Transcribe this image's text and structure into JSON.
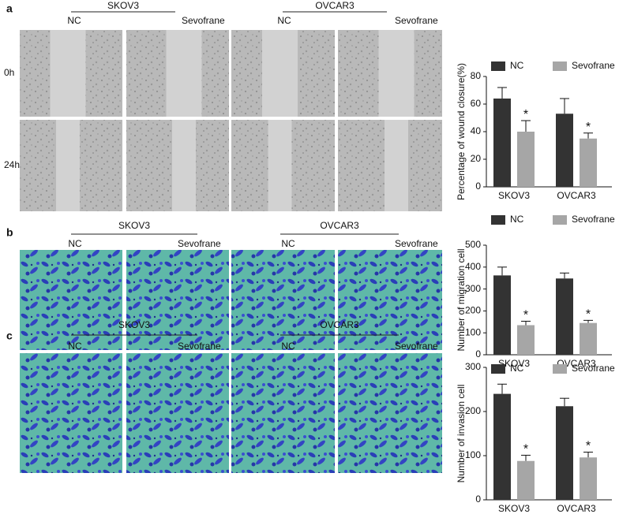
{
  "panels": [
    {
      "label": "a",
      "groups": [
        {
          "name": "SKOV3",
          "conditions": [
            "NC",
            "Sevofrane"
          ]
        },
        {
          "name": "OVCAR3",
          "conditions": [
            "NC",
            "Sevofrane"
          ]
        }
      ],
      "rows": [
        "0h",
        "24h"
      ]
    },
    {
      "label": "b",
      "groups": [
        {
          "name": "SKOV3",
          "conditions": [
            "NC",
            "Sevofrane"
          ]
        },
        {
          "name": "OVCAR3",
          "conditions": [
            "NC",
            "Sevofrane"
          ]
        }
      ]
    },
    {
      "label": "c",
      "groups": [
        {
          "name": "SKOV3",
          "conditions": [
            "NC",
            "Sevofrane"
          ]
        },
        {
          "name": "OVCAR3",
          "conditions": [
            "NC",
            "Sevofrane"
          ]
        }
      ]
    }
  ],
  "chart_data": [
    {
      "type": "bar",
      "y_label": "Percentage of wound closure(%)",
      "categories": [
        "SKOV3",
        "OVCAR3"
      ],
      "series": [
        {
          "name": "NC",
          "color": "#333333",
          "values": [
            64,
            53
          ],
          "errors": [
            8,
            11
          ]
        },
        {
          "name": "Sevofrane",
          "color": "#a6a6a6",
          "values": [
            40,
            35
          ],
          "errors": [
            8,
            4
          ],
          "annotations": [
            "*",
            "*"
          ]
        }
      ],
      "ylim": [
        0,
        80
      ],
      "yticks": [
        0,
        20,
        40,
        60,
        80
      ]
    },
    {
      "type": "bar",
      "y_label": "Number of migration cell",
      "categories": [
        "SKOV3",
        "OVCAR3"
      ],
      "series": [
        {
          "name": "NC",
          "color": "#333333",
          "values": [
            362,
            348
          ],
          "errors": [
            38,
            25
          ]
        },
        {
          "name": "Sevofrane",
          "color": "#a6a6a6",
          "values": [
            135,
            145
          ],
          "errors": [
            18,
            12
          ],
          "annotations": [
            "*",
            "*"
          ]
        }
      ],
      "ylim": [
        0,
        500
      ],
      "yticks": [
        0,
        100,
        200,
        300,
        400,
        500
      ]
    },
    {
      "type": "bar",
      "y_label": "Number of invasion cell",
      "categories": [
        "SKOV3",
        "OVCAR3"
      ],
      "series": [
        {
          "name": "NC",
          "color": "#333333",
          "values": [
            240,
            212
          ],
          "errors": [
            22,
            18
          ]
        },
        {
          "name": "Sevofrane",
          "color": "#a6a6a6",
          "values": [
            88,
            96
          ],
          "errors": [
            13,
            12
          ],
          "annotations": [
            "*",
            "*"
          ]
        }
      ],
      "ylim": [
        0,
        300
      ],
      "yticks": [
        0,
        100,
        200,
        300
      ]
    }
  ]
}
